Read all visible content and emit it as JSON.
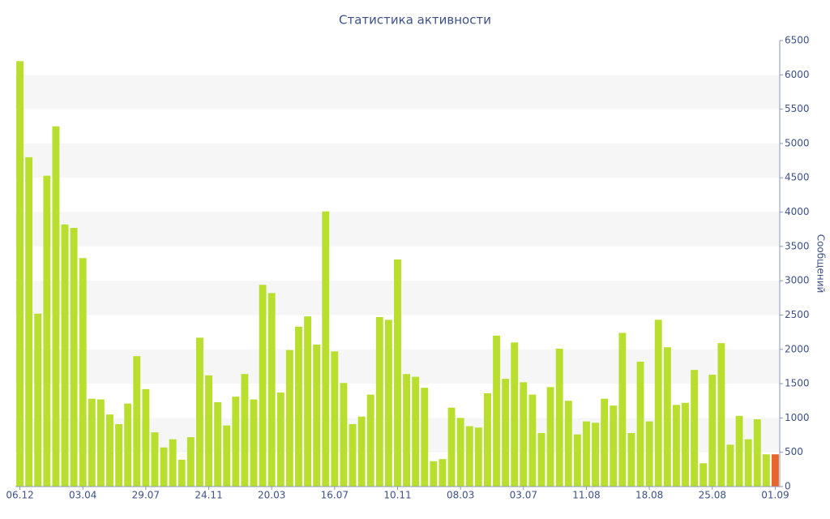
{
  "chart_data": {
    "type": "bar",
    "title": "Статистика активности",
    "y_axis_label": "Сообщений",
    "categories": [
      "06.12",
      null,
      null,
      null,
      null,
      null,
      null,
      "03.04",
      null,
      null,
      null,
      null,
      null,
      null,
      "29.07",
      null,
      null,
      null,
      null,
      null,
      null,
      "24.11",
      null,
      null,
      null,
      null,
      null,
      null,
      "20.03",
      null,
      null,
      null,
      null,
      null,
      null,
      "16.07",
      null,
      null,
      null,
      null,
      null,
      null,
      "10.11",
      null,
      null,
      null,
      null,
      null,
      null,
      "08.03",
      null,
      null,
      null,
      null,
      null,
      null,
      "03.07",
      null,
      null,
      null,
      null,
      null,
      null,
      "11.08",
      null,
      null,
      null,
      null,
      null,
      null,
      "18.08",
      null,
      null,
      null,
      null,
      null,
      null,
      "25.08",
      null,
      null,
      null,
      null,
      null,
      null,
      "01.09"
    ],
    "values": [
      6200,
      4800,
      2520,
      4530,
      5250,
      3820,
      3770,
      3330,
      1280,
      1270,
      1050,
      910,
      1210,
      1900,
      1420,
      790,
      570,
      690,
      390,
      720,
      2170,
      1620,
      1230,
      890,
      1310,
      1640,
      1270,
      2940,
      2820,
      1370,
      1990,
      2330,
      2480,
      2070,
      4010,
      1970,
      1510,
      910,
      1020,
      1340,
      2470,
      2430,
      3310,
      1640,
      1600,
      1440,
      370,
      400,
      1150,
      1000,
      880,
      860,
      1360,
      2200,
      1570,
      2100,
      1520,
      1340,
      780,
      1450,
      2010,
      1250,
      760,
      950,
      930,
      1280,
      1180,
      2240,
      780,
      1820,
      950,
      2430,
      2030,
      1190,
      1220,
      1700,
      340,
      1630,
      2090,
      610,
      1030,
      690,
      980,
      470,
      470
    ],
    "color": "#b8df2e",
    "last_color": "#e8652c",
    "ylim": [
      0,
      6500
    ],
    "yticks": [
      0,
      500,
      1000,
      1500,
      2000,
      2500,
      3000,
      3500,
      4000,
      4500,
      5000,
      5500,
      6000,
      6500
    ],
    "grid_bands": true,
    "y_axis_side": "right"
  }
}
